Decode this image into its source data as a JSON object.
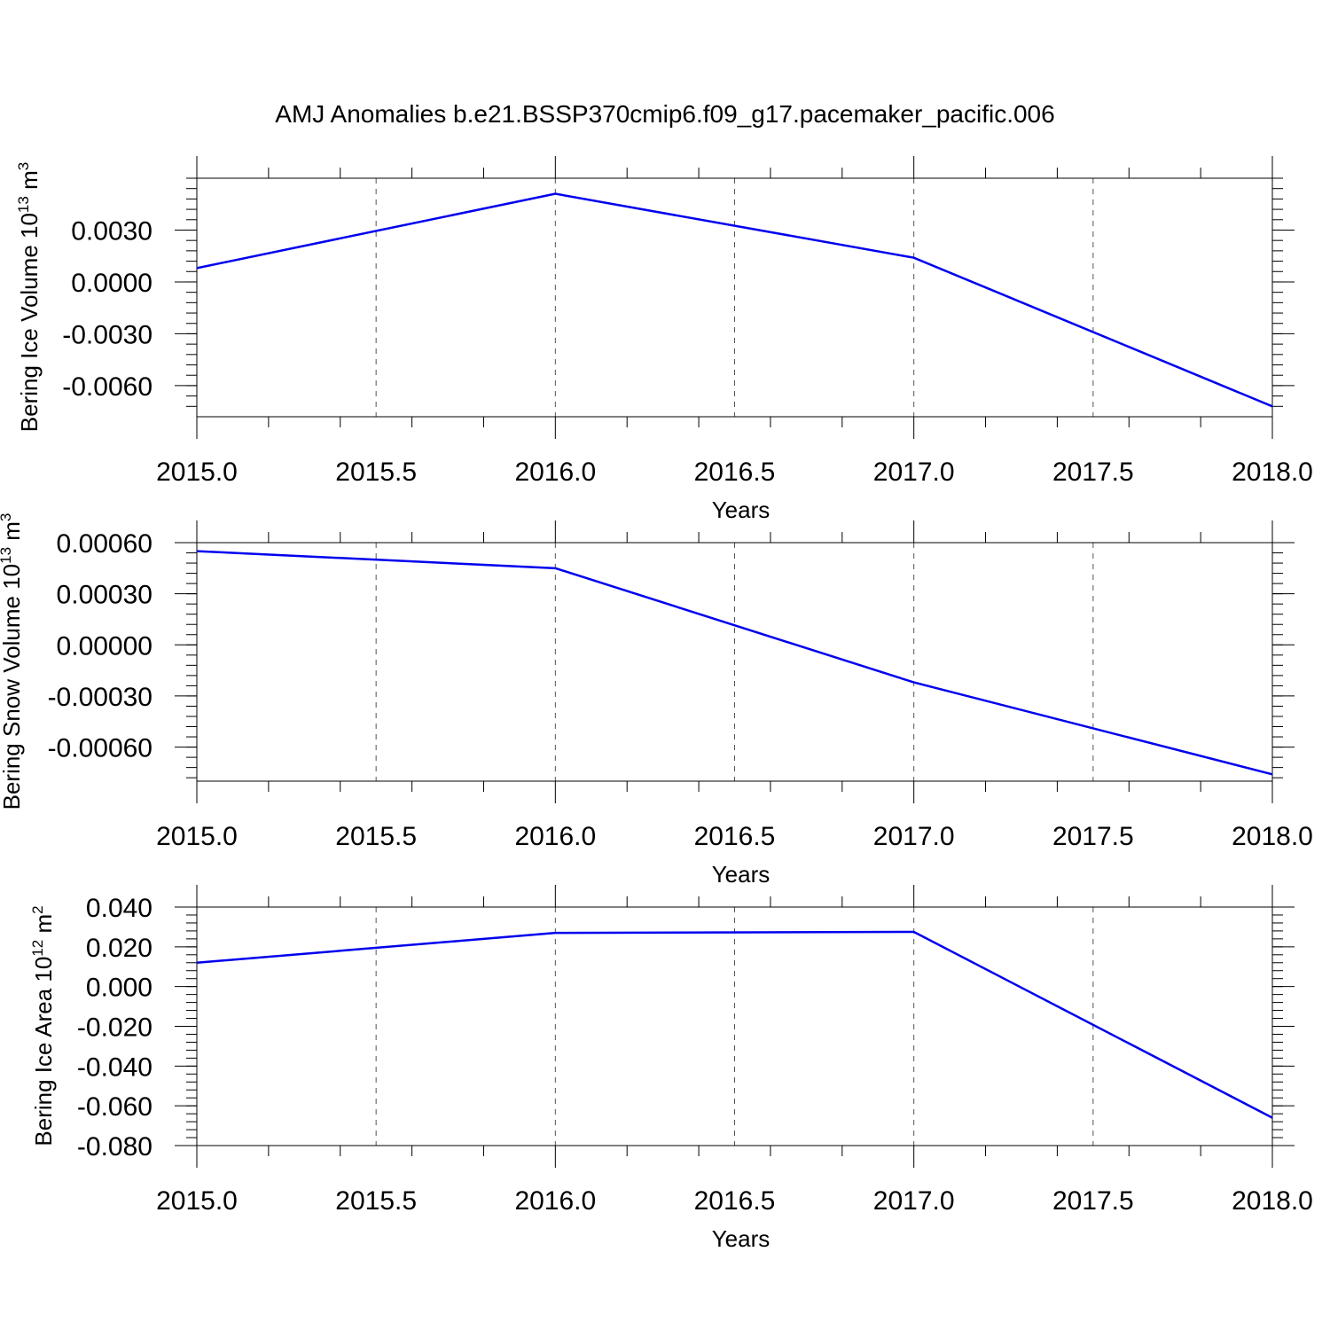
{
  "figure_title": "AMJ Anomalies b.e21.BSSP370cmip6.f09_g17.pacemaker_pacific.006",
  "colors": {
    "line": "#0000ee",
    "axis": "#000000",
    "grid": "#555555"
  },
  "chart_data": [
    {
      "type": "line",
      "title": "",
      "xlabel": "Years",
      "ylabel": "Bering Ice Volume 10",
      "ylabel_exp": "13",
      "ylabel_unit": " m",
      "ylabel_unit_exp": "3",
      "xlim": [
        2015.0,
        2018.0
      ],
      "ylim": [
        -0.0078,
        0.006
      ],
      "xticks": [
        "2015.0",
        "2015.5",
        "2016.0",
        "2016.5",
        "2017.0",
        "2017.5",
        "2018.0"
      ],
      "yticks": [
        "0.0030",
        "0.0000",
        "-0.0030",
        "-0.0060"
      ],
      "ytick_values": [
        0.003,
        0.0,
        -0.003,
        -0.006
      ],
      "grid": "x dashed",
      "series": [
        {
          "x": [
            2015,
            2016,
            2017,
            2018
          ],
          "y": [
            0.0008,
            0.0051,
            0.0014,
            -0.0072
          ]
        }
      ]
    },
    {
      "type": "line",
      "title": "",
      "xlabel": "Years",
      "ylabel": "Bering Snow Volume 10",
      "ylabel_exp": "13",
      "ylabel_unit": " m",
      "ylabel_unit_exp": "3",
      "xlim": [
        2015.0,
        2018.0
      ],
      "ylim": [
        -0.0008,
        0.0006
      ],
      "xticks": [
        "2015.0",
        "2015.5",
        "2016.0",
        "2016.5",
        "2017.0",
        "2017.5",
        "2018.0"
      ],
      "yticks": [
        "0.00060",
        "0.00030",
        "0.00000",
        "-0.00030",
        "-0.00060"
      ],
      "ytick_values": [
        0.0006,
        0.0003,
        0.0,
        -0.0003,
        -0.0006
      ],
      "grid": "x dashed",
      "series": [
        {
          "x": [
            2015,
            2016,
            2017,
            2018
          ],
          "y": [
            0.00055,
            0.00045,
            -0.00022,
            -0.00076
          ]
        }
      ]
    },
    {
      "type": "line",
      "title": "",
      "xlabel": "Years",
      "ylabel": "Bering Ice Area 10",
      "ylabel_exp": "12",
      "ylabel_unit": " m",
      "ylabel_unit_exp": "2",
      "xlim": [
        2015.0,
        2018.0
      ],
      "ylim": [
        -0.08,
        0.04
      ],
      "xticks": [
        "2015.0",
        "2015.5",
        "2016.0",
        "2016.5",
        "2017.0",
        "2017.5",
        "2018.0"
      ],
      "yticks": [
        "0.040",
        "0.020",
        "0.000",
        "-0.020",
        "-0.040",
        "-0.060",
        "-0.080"
      ],
      "ytick_values": [
        0.04,
        0.02,
        0.0,
        -0.02,
        -0.04,
        -0.06,
        -0.08
      ],
      "grid": "x dashed",
      "series": [
        {
          "x": [
            2015,
            2016,
            2017,
            2018
          ],
          "y": [
            0.012,
            0.027,
            0.0275,
            -0.066
          ]
        }
      ]
    }
  ]
}
